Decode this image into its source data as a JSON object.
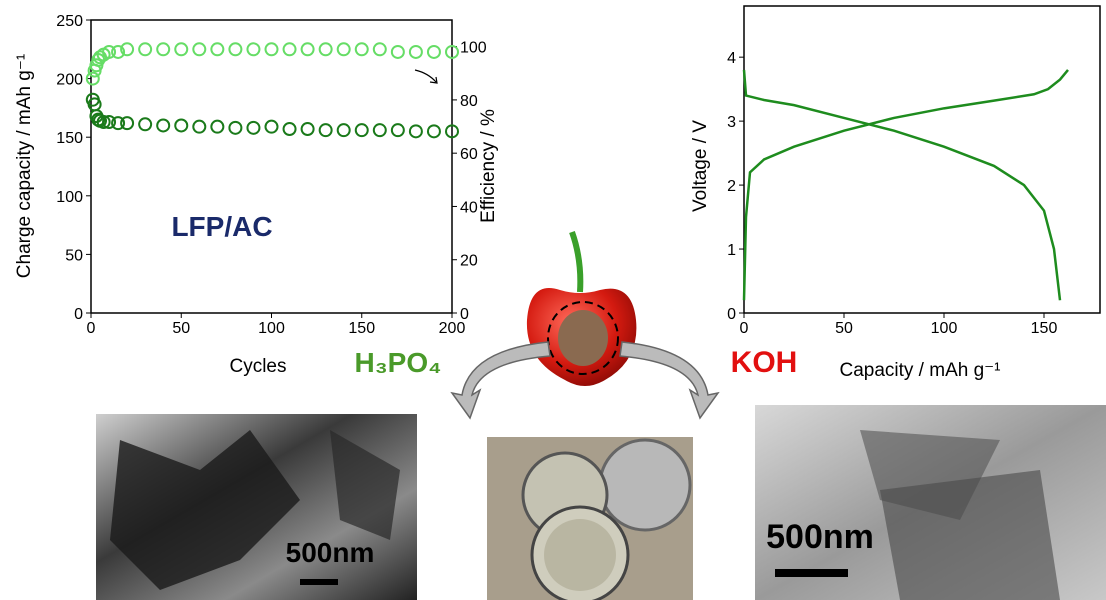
{
  "chart_data": [
    {
      "type": "scatter",
      "annotation": "LFP/AC",
      "x_label": "Cycles",
      "y_label": "Charge capacity / mAh g⁻¹",
      "y2_label": "Efficiency / %",
      "x": [
        1,
        2,
        3,
        4,
        5,
        7,
        10,
        15,
        20,
        30,
        40,
        50,
        60,
        70,
        80,
        90,
        100,
        110,
        120,
        130,
        140,
        150,
        160,
        170,
        180,
        190,
        200
      ],
      "series": [
        {
          "color": "#1a7a1a",
          "values": [
            182,
            178,
            168,
            165,
            164,
            163,
            163,
            162,
            162,
            161,
            160,
            160,
            159,
            159,
            158,
            158,
            159,
            157,
            157,
            156,
            156,
            156,
            156,
            156,
            155,
            155,
            155
          ]
        },
        {
          "color": "#66dd66",
          "axis": "y2",
          "values": [
            88,
            91,
            93,
            95,
            96,
            97,
            98,
            98,
            99,
            99,
            99,
            99,
            99,
            99,
            99,
            99,
            99,
            99,
            99,
            99,
            99,
            99,
            99,
            98,
            98,
            98,
            98
          ]
        }
      ],
      "xlim": [
        0,
        200
      ],
      "xticks": [
        0,
        50,
        100,
        150,
        200
      ],
      "ylim": [
        0,
        250
      ],
      "yticks": [
        0,
        50,
        100,
        150,
        200,
        250
      ],
      "y2lim": [
        0,
        110
      ],
      "y2ticks": [
        0,
        20,
        40,
        60,
        80,
        100
      ]
    },
    {
      "type": "line",
      "x_label": "Capacity / mAh g⁻¹",
      "y_label": "Voltage / V",
      "series": [
        {
          "color": "#1e8c1e",
          "x": [
            0,
            1,
            3,
            10,
            25,
            50,
            75,
            100,
            125,
            145,
            152,
            158,
            162
          ],
          "values": [
            0.2,
            1.5,
            2.2,
            2.4,
            2.6,
            2.85,
            3.05,
            3.2,
            3.32,
            3.42,
            3.5,
            3.65,
            3.8
          ]
        },
        {
          "color": "#1e8c1e",
          "x": [
            0,
            1,
            10,
            25,
            50,
            75,
            100,
            125,
            140,
            150,
            155,
            158
          ],
          "values": [
            3.8,
            3.4,
            3.33,
            3.25,
            3.05,
            2.85,
            2.6,
            2.3,
            2.0,
            1.6,
            1.0,
            0.2
          ]
        }
      ],
      "xlim": [
        0,
        178
      ],
      "xticks": [
        0,
        50,
        100,
        150
      ],
      "ylim": [
        0,
        4.8
      ],
      "yticks": [
        0,
        1,
        2,
        3,
        4
      ]
    }
  ],
  "labels": {
    "acid": "H₃PO₄",
    "base": "KOH"
  },
  "images": {
    "left_scale": "500nm",
    "right_scale": "500nm"
  }
}
